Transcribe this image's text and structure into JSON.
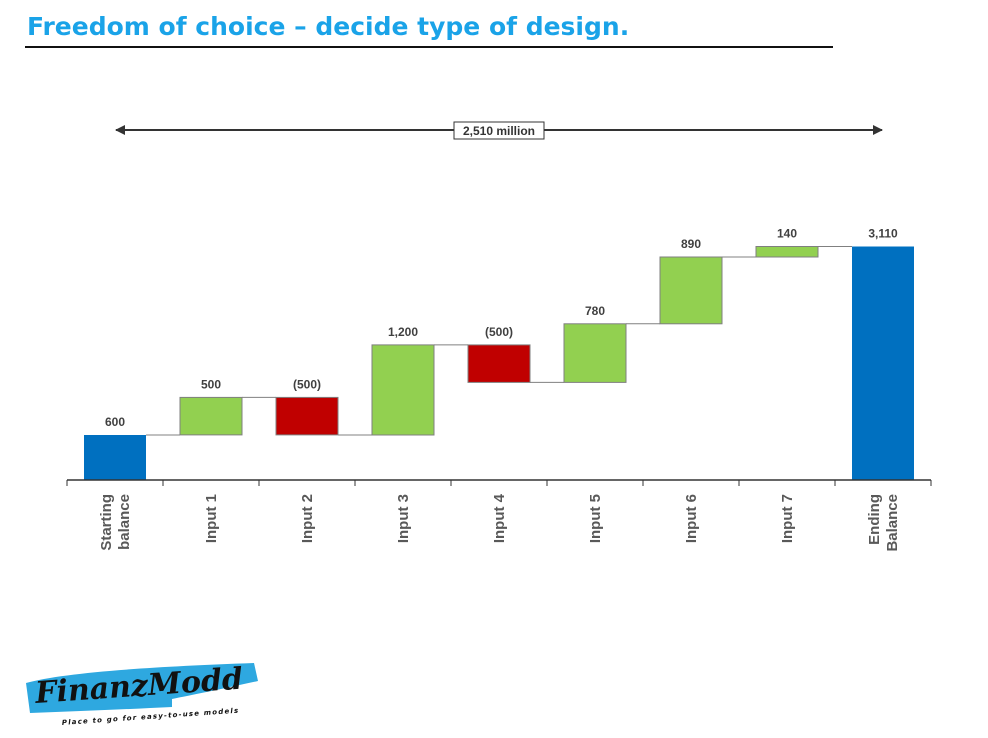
{
  "page": {
    "title": "Freedom of choice – decide type of design."
  },
  "logo": {
    "name": "FinanzModd",
    "tagline": "Place to go for easy-to-use models"
  },
  "colors": {
    "title": "#1aa3e8",
    "total": "#0070c0",
    "increase": "#92d050",
    "decrease": "#c00000",
    "connector": "#808080",
    "axis": "#333333",
    "logo_brush": "#2ea8e0"
  },
  "chart_data": {
    "type": "bar",
    "subtype": "waterfall",
    "categories": [
      "Starting balance",
      "Input 1",
      "Input 2",
      "Input 3",
      "Input 4",
      "Input 5",
      "Input 6",
      "Input 7",
      "Ending Balance"
    ],
    "category_lines": [
      [
        "Starting",
        "balance"
      ],
      [
        "Input 1"
      ],
      [
        "Input 2"
      ],
      [
        "Input 3"
      ],
      [
        "Input 4"
      ],
      [
        "Input 5"
      ],
      [
        "Input 6"
      ],
      [
        "Input 7"
      ],
      [
        "Ending",
        "Balance"
      ]
    ],
    "values": [
      600,
      500,
      -500,
      1200,
      -500,
      780,
      890,
      140,
      3110
    ],
    "kinds": [
      "total",
      "increase",
      "decrease",
      "increase",
      "decrease",
      "increase",
      "increase",
      "increase",
      "total"
    ],
    "data_labels": [
      "600",
      "500",
      "(500)",
      "1,200",
      "(500)",
      "780",
      "890",
      "140",
      "3,110"
    ],
    "annotation": "2,510 million",
    "ylim": [
      0,
      3400
    ],
    "grid": false,
    "legend": "none"
  }
}
